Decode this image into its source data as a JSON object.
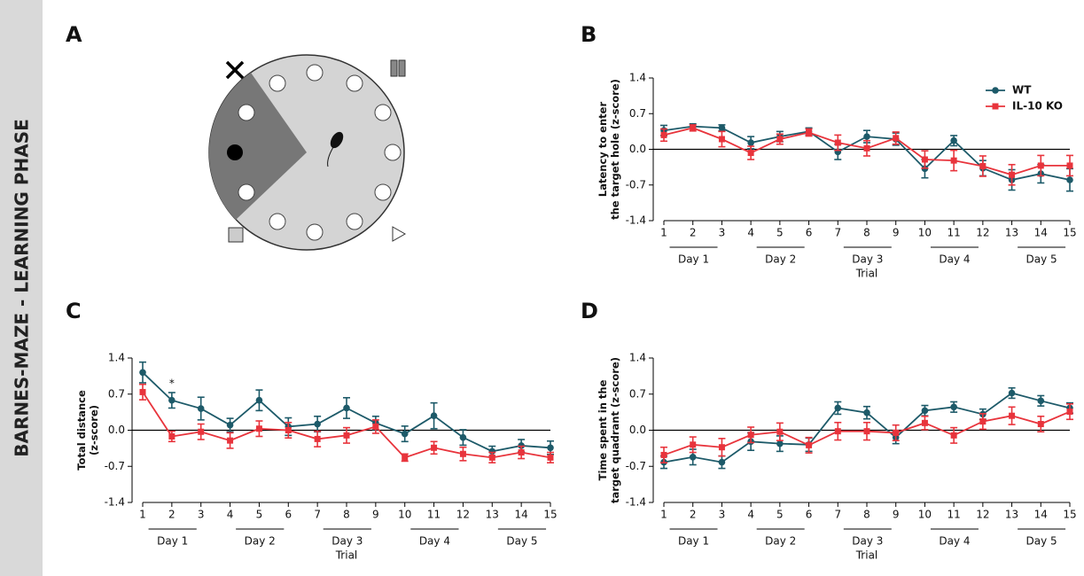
{
  "figure": {
    "side_label": "BARNES-MAZE - LEARNING PHASE",
    "panel_labels": [
      "A",
      "B",
      "C",
      "D"
    ]
  },
  "chart_data": [
    {
      "type": "line",
      "ylabel": [
        "Latency to enter",
        "the target hole (z-score)"
      ],
      "xlabel": "Trial",
      "x": [
        1,
        2,
        3,
        4,
        5,
        6,
        7,
        8,
        9,
        10,
        11,
        12,
        13,
        14,
        15
      ],
      "xlim": [
        1,
        15
      ],
      "xticks": [
        1,
        2,
        3,
        4,
        5,
        6,
        7,
        8,
        9,
        10,
        11,
        12,
        13,
        14,
        15
      ],
      "ylim": [
        -1.4,
        1.4
      ],
      "yticks": [
        -1.4,
        -0.7,
        {
          "value": 0,
          "label": "0.0"
        },
        0.7,
        1.4
      ],
      "day_labels": [
        "Day 1",
        "Day 2",
        "Day 3",
        "Day 4",
        "Day 5"
      ],
      "zero_line": true,
      "legend": "upper right",
      "series": [
        {
          "name": "WT",
          "color": "#1d5a69",
          "marker": "circle",
          "values": [
            0.37,
            0.45,
            0.42,
            0.13,
            0.25,
            0.35,
            -0.05,
            0.25,
            0.2,
            -0.38,
            0.17,
            -0.37,
            -0.6,
            -0.48,
            -0.6
          ],
          "errors": [
            0.1,
            0.05,
            0.06,
            0.12,
            0.1,
            0.07,
            0.15,
            0.12,
            0.12,
            0.18,
            0.1,
            0.15,
            0.2,
            0.18,
            0.22
          ]
        },
        {
          "name": "IL-10 KO",
          "color": "#e8343c",
          "marker": "square",
          "values": [
            0.28,
            0.42,
            0.2,
            -0.07,
            0.2,
            0.33,
            0.13,
            0.02,
            0.22,
            -0.2,
            -0.22,
            -0.33,
            -0.5,
            -0.32,
            -0.32
          ],
          "errors": [
            0.12,
            0.06,
            0.15,
            0.13,
            0.1,
            0.07,
            0.15,
            0.15,
            0.12,
            0.17,
            0.2,
            0.2,
            0.2,
            0.2,
            0.2
          ]
        }
      ]
    },
    {
      "type": "line",
      "ylabel": [
        "Total distance",
        "(z-score)"
      ],
      "xlabel": "Trial",
      "x": [
        1,
        2,
        3,
        4,
        5,
        6,
        7,
        8,
        9,
        10,
        11,
        12,
        13,
        14,
        15
      ],
      "xlim": [
        1,
        15
      ],
      "xticks": [
        1,
        2,
        3,
        4,
        5,
        6,
        7,
        8,
        9,
        10,
        11,
        12,
        13,
        14,
        15
      ],
      "ylim": [
        -1.4,
        1.4
      ],
      "yticks": [
        -1.4,
        -0.7,
        {
          "value": 0,
          "label": "0.0"
        },
        0.7,
        1.4
      ],
      "day_labels": [
        "Day 1",
        "Day 2",
        "Day 3",
        "Day 4",
        "Day 5"
      ],
      "zero_line": true,
      "annotations": [
        {
          "text": "*",
          "x": 2
        }
      ],
      "series": [
        {
          "color": "#1d5a69",
          "marker": "circle",
          "values": [
            1.12,
            0.58,
            0.42,
            0.1,
            0.58,
            0.07,
            0.12,
            0.43,
            0.14,
            -0.07,
            0.28,
            -0.14,
            -0.41,
            -0.3,
            -0.34
          ],
          "errors": [
            0.2,
            0.15,
            0.22,
            0.13,
            0.2,
            0.17,
            0.15,
            0.2,
            0.13,
            0.15,
            0.25,
            0.15,
            0.1,
            0.12,
            0.13
          ]
        },
        {
          "color": "#e8343c",
          "marker": "square",
          "values": [
            0.74,
            -0.12,
            -0.03,
            -0.2,
            0.03,
            0.0,
            -0.17,
            -0.1,
            0.07,
            -0.53,
            -0.34,
            -0.46,
            -0.53,
            -0.43,
            -0.53
          ],
          "errors": [
            0.15,
            0.1,
            0.15,
            0.15,
            0.15,
            0.15,
            0.15,
            0.15,
            0.13,
            0.07,
            0.12,
            0.13,
            0.1,
            0.12,
            0.1
          ]
        }
      ]
    },
    {
      "type": "line",
      "ylabel": [
        "Time spent in the",
        "target quadrant (z-score)"
      ],
      "xlabel": "Trial",
      "x": [
        1,
        2,
        3,
        4,
        5,
        6,
        7,
        8,
        9,
        10,
        11,
        12,
        13,
        14,
        15
      ],
      "xlim": [
        1,
        15
      ],
      "xticks": [
        1,
        2,
        3,
        4,
        5,
        6,
        7,
        8,
        9,
        10,
        11,
        12,
        13,
        14,
        15
      ],
      "ylim": [
        -1.4,
        1.4
      ],
      "yticks": [
        -1.4,
        -0.7,
        {
          "value": 0,
          "label": "0.0"
        },
        0.7,
        1.4
      ],
      "day_labels": [
        "Day 1",
        "Day 2",
        "Day 3",
        "Day 4",
        "Day 5"
      ],
      "zero_line": true,
      "series": [
        {
          "color": "#1d5a69",
          "marker": "circle",
          "values": [
            -0.62,
            -0.52,
            -0.62,
            -0.22,
            -0.26,
            -0.28,
            0.43,
            0.34,
            -0.14,
            0.38,
            0.45,
            0.31,
            0.72,
            0.57,
            0.43
          ],
          "errors": [
            0.12,
            0.15,
            0.12,
            0.17,
            0.15,
            0.13,
            0.12,
            0.12,
            0.12,
            0.1,
            0.1,
            0.1,
            0.1,
            0.1,
            0.1
          ]
        },
        {
          "color": "#e8343c",
          "marker": "square",
          "values": [
            -0.48,
            -0.28,
            -0.33,
            -0.09,
            -0.03,
            -0.29,
            -0.02,
            -0.02,
            -0.05,
            0.14,
            -0.1,
            0.17,
            0.28,
            0.12,
            0.36
          ],
          "errors": [
            0.15,
            0.15,
            0.17,
            0.15,
            0.17,
            0.15,
            0.17,
            0.17,
            0.15,
            0.13,
            0.15,
            0.15,
            0.17,
            0.15,
            0.15
          ]
        }
      ]
    }
  ]
}
